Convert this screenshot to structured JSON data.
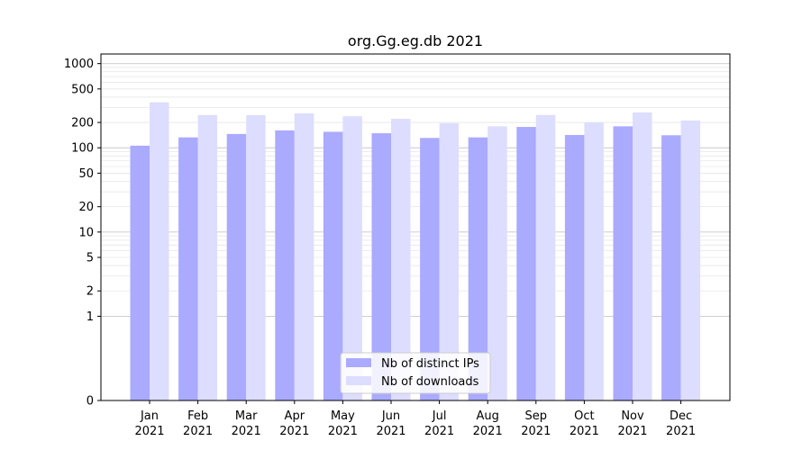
{
  "chart_data": {
    "type": "bar",
    "title": "org.Gg.eg.db 2021",
    "xlabel": "",
    "ylabel": "",
    "yscale": "symlog",
    "ylim": [
      0,
      1300
    ],
    "yticks": [
      0,
      1,
      2,
      5,
      10,
      20,
      50,
      100,
      200,
      500,
      1000
    ],
    "grid": true,
    "legend_position": "bottom-center",
    "categories": [
      [
        "Jan",
        "2021"
      ],
      [
        "Feb",
        "2021"
      ],
      [
        "Mar",
        "2021"
      ],
      [
        "Apr",
        "2021"
      ],
      [
        "May",
        "2021"
      ],
      [
        "Jun",
        "2021"
      ],
      [
        "Jul",
        "2021"
      ],
      [
        "Aug",
        "2021"
      ],
      [
        "Sep",
        "2021"
      ],
      [
        "Oct",
        "2021"
      ],
      [
        "Nov",
        "2021"
      ],
      [
        "Dec",
        "2021"
      ]
    ],
    "series": [
      {
        "name": "Nb of distinct IPs",
        "color": "#aaaaff",
        "values": [
          106,
          133,
          146,
          161,
          155,
          149,
          131,
          133,
          177,
          142,
          180,
          141
        ]
      },
      {
        "name": "Nb of downloads",
        "color": "#ddddff",
        "values": [
          347,
          245,
          244,
          257,
          237,
          221,
          196,
          180,
          245,
          200,
          263,
          211
        ]
      }
    ]
  }
}
